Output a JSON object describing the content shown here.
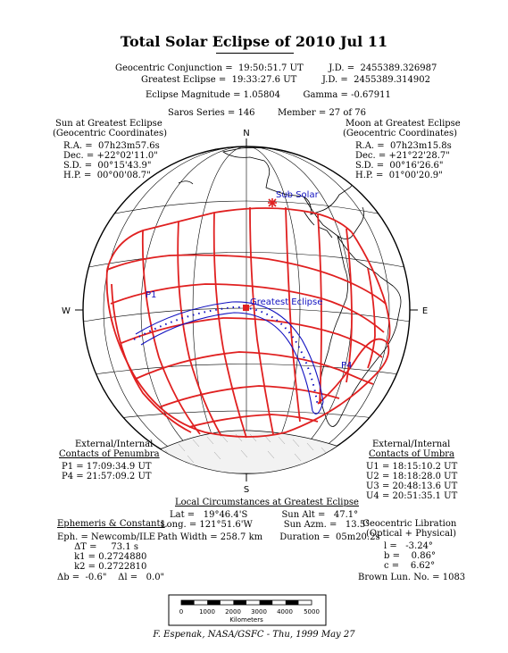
{
  "title": "Total Solar Eclipse of 2010 Jul 11",
  "header": {
    "conj_line": "Geocentric Conjunction =  19:50:51.7 UT         J.D. =  2455389.326987",
    "ge_line": "Greatest Eclipse =  19:33:27.6 UT         J.D. =  2455389.314902",
    "mag_line": "Eclipse Magnitude = 1.05804        Gamma = -0.67911",
    "saros_line": "Saros Series = 146        Member = 27 of 76"
  },
  "sun": {
    "h1": "Sun at Greatest Eclipse",
    "h2": "(Geocentric Coordinates)",
    "lines": [
      "R.A. =  07h23m57.6s",
      "Dec. = +22°02'11.0\"",
      "S.D. =  00°15'43.9\"",
      "H.P. =  00°00'08.7\""
    ]
  },
  "moon": {
    "h1": "Moon at Greatest Eclipse",
    "h2": "(Geocentric Coordinates)",
    "lines": [
      "R.A. =  07h23m15.8s",
      "Dec. = +21°22'28.7\"",
      "S.D. =  00°16'26.6\"",
      "H.P. =  01°00'20.9\""
    ]
  },
  "map": {
    "north": "N",
    "south": "S",
    "west": "W",
    "east": "E",
    "sub_solar": "Sub Solar",
    "greatest_eclipse": "Greatest Eclipse",
    "p1": "P1",
    "p4": "P4"
  },
  "penumbra": {
    "h1": "External/Internal",
    "h2": "Contacts of Penumbra",
    "lines": [
      "P1 = 17:09:34.9 UT",
      "P4 = 21:57:09.2 UT"
    ]
  },
  "umbra": {
    "h1": "External/Internal",
    "h2": "Contacts of Umbra",
    "lines": [
      "U1 = 18:15:10.2 UT",
      "U2 = 18:18:28.0 UT",
      "U3 = 20:48:13.6 UT",
      "U4 = 20:51:35.1 UT"
    ]
  },
  "local": {
    "heading": "Local Circumstances at Greatest Eclipse",
    "lines": [
      "Lat =   19°46.4'S            Sun Alt =   47.1°",
      "Long. = 121°51.6'W           Sun Azm. =   13.5°",
      "Path Width = 258.7 km      Duration =  05m20.2s"
    ]
  },
  "ephemeris": {
    "heading": "Ephemeris & Constants",
    "lines": [
      "Eph. = Newcomb/ILE",
      "      ΔT =     73.1 s",
      "      k1 = 0.2724880",
      "      k2 = 0.2722810",
      "Δb =  -0.6\"    Δl =   0.0\""
    ]
  },
  "libration": {
    "h1": "Geocentric Libration",
    "h2": "(Optical + Physical)",
    "lines": [
      "l =   -3.24°",
      "b =    0.86°",
      "c =    6.62°"
    ],
    "brown": "Brown Lun. No. = 1083"
  },
  "scale": {
    "ticks": [
      "0",
      "1000",
      "2000",
      "3000",
      "4000",
      "5000"
    ],
    "unit": "Kilometers"
  },
  "credit": "F. Espenak, NASA/GSFC - Thu, 1999 May 27",
  "colors": {
    "eclipse_lines": "#e02020",
    "umbra_path": "#1010c0",
    "ink": "#000000"
  }
}
